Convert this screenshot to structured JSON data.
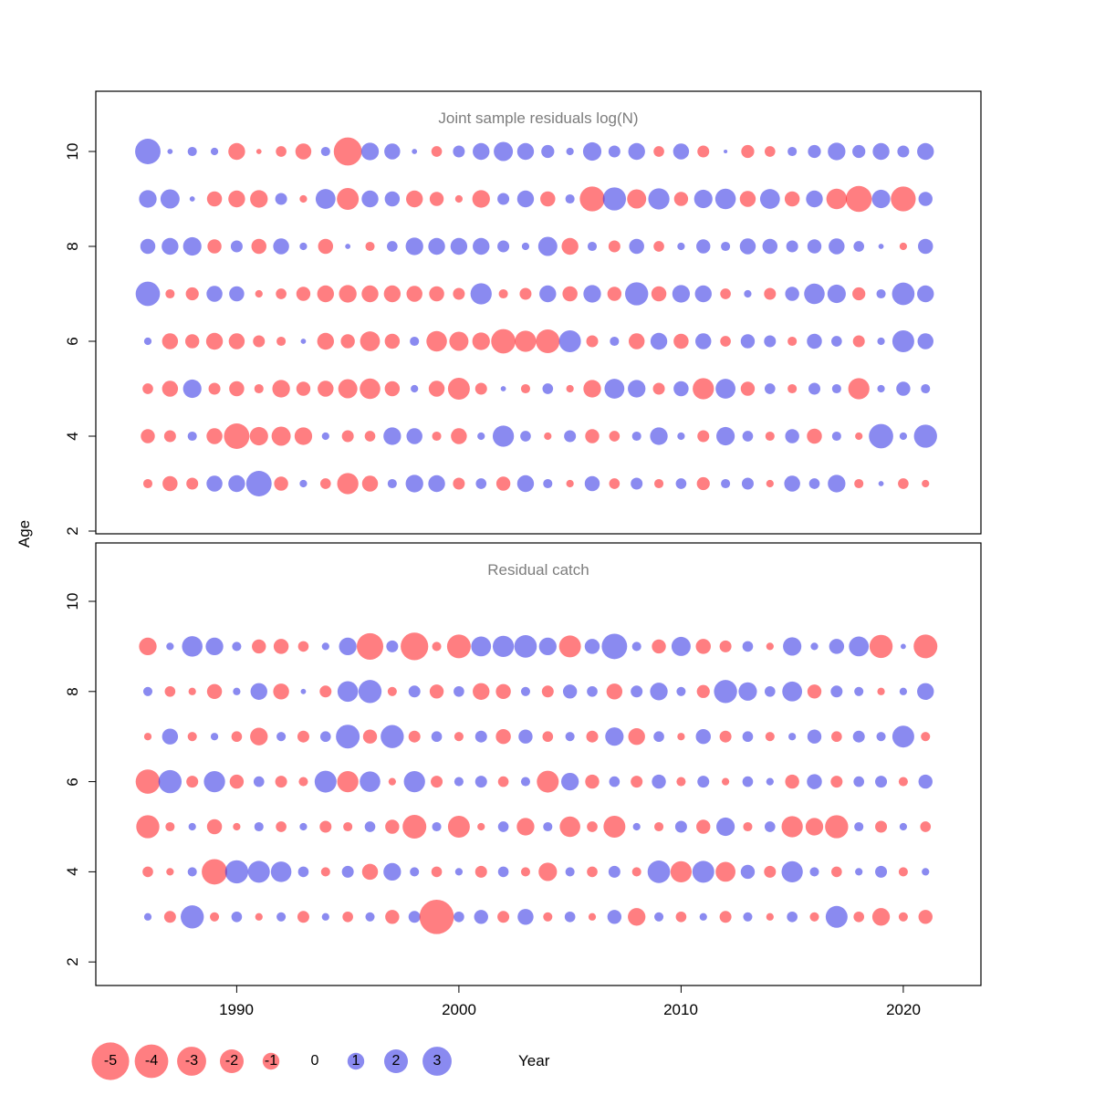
{
  "figure": {
    "xlabel": "Year",
    "ylabel": "Age",
    "colors": {
      "negative": "#ff282d",
      "positive": "#3c3ce6",
      "opacity": 0.6
    }
  },
  "axes": {
    "xticks": [
      "1990",
      "2000",
      "2010",
      "2020"
    ],
    "yticks": [
      "10",
      "8",
      "6",
      "4",
      "2"
    ]
  },
  "legend": {
    "labels": [
      "-5",
      "-4",
      "-3",
      "-2",
      "-1",
      "0",
      "1",
      "2",
      "3"
    ],
    "values": [
      -5,
      -4,
      -3,
      -2,
      -1,
      0,
      1,
      2,
      3
    ]
  },
  "chart_data": [
    {
      "type": "scatter",
      "subtype": "bubble-residuals",
      "title": "Joint sample residuals log(N)",
      "xlabel": "Year",
      "ylabel": "Age",
      "xticks": [
        1990,
        2000,
        2010,
        2020
      ],
      "yticks": [
        10,
        8,
        6,
        4,
        2
      ],
      "years": [
        1986,
        1987,
        1988,
        1989,
        1990,
        1991,
        1992,
        1993,
        1994,
        1995,
        1996,
        1997,
        1998,
        1999,
        2000,
        2001,
        2002,
        2003,
        2004,
        2005,
        2006,
        2007,
        2008,
        2009,
        2010,
        2011,
        2012,
        2013,
        2014,
        2015,
        2016,
        2017,
        2018,
        2019,
        2020,
        2021
      ],
      "ages": [
        10,
        9,
        8,
        7,
        6,
        5,
        4,
        3
      ],
      "values": [
        [
          2.3,
          0.1,
          0.3,
          0.2,
          -1.0,
          -0.1,
          -0.4,
          -0.9,
          0.3,
          -2.8,
          1.1,
          0.9,
          0.1,
          -0.4,
          0.5,
          1.0,
          1.3,
          1.0,
          0.6,
          0.2,
          1.2,
          0.5,
          1.0,
          -0.4,
          0.9,
          -0.5,
          0.05,
          -0.6,
          -0.4,
          0.3,
          0.6,
          1.1,
          0.6,
          1.0,
          0.5,
          1.0
        ],
        [
          1.1,
          1.3,
          0.1,
          -0.8,
          -1.0,
          -1.1,
          0.5,
          -0.2,
          1.4,
          -1.7,
          1.0,
          0.8,
          -1.0,
          -0.7,
          -0.2,
          -1.1,
          0.5,
          1.0,
          -0.8,
          0.3,
          -2.2,
          1.9,
          -1.3,
          1.6,
          -0.7,
          1.2,
          1.5,
          -0.9,
          1.4,
          -0.8,
          1.0,
          -1.5,
          -2.4,
          1.2,
          -2.2,
          0.7
        ],
        [
          0.8,
          1.0,
          1.2,
          -0.7,
          0.5,
          -0.8,
          0.9,
          0.2,
          -0.8,
          0.1,
          -0.3,
          0.4,
          1.1,
          1.0,
          1.0,
          1.0,
          0.5,
          0.2,
          1.3,
          -1.0,
          0.3,
          -0.5,
          0.8,
          -0.4,
          0.2,
          0.7,
          0.3,
          0.9,
          0.8,
          0.5,
          0.7,
          0.9,
          0.4,
          0.1,
          -0.2,
          0.8
        ],
        [
          2.1,
          -0.3,
          -0.6,
          0.9,
          0.8,
          -0.2,
          -0.4,
          -0.7,
          -1.0,
          -1.1,
          -1.0,
          -1.0,
          -0.9,
          -0.8,
          -0.5,
          1.6,
          -0.3,
          -0.5,
          1.0,
          -0.8,
          1.1,
          -0.7,
          1.9,
          -0.8,
          1.1,
          1.0,
          -0.4,
          0.2,
          -0.5,
          0.7,
          1.5,
          1.2,
          -0.6,
          0.3,
          1.8,
          1.0
        ],
        [
          0.2,
          -0.9,
          -0.7,
          -1.0,
          -0.9,
          -0.5,
          -0.3,
          0.1,
          -1.0,
          -0.7,
          -1.4,
          -0.8,
          0.3,
          -1.5,
          -1.3,
          -1.1,
          -2.1,
          -1.6,
          -2.0,
          1.7,
          -0.5,
          0.3,
          -0.9,
          1.0,
          -0.8,
          0.9,
          -0.4,
          0.7,
          0.5,
          -0.3,
          0.8,
          0.4,
          -0.5,
          0.2,
          1.7,
          0.9
        ],
        [
          -0.4,
          -0.9,
          1.2,
          -0.5,
          -0.8,
          -0.3,
          -1.1,
          -0.7,
          -0.9,
          -1.3,
          -1.5,
          -0.8,
          0.2,
          -0.9,
          -1.7,
          -0.5,
          0.1,
          -0.3,
          0.4,
          -0.2,
          -1.1,
          1.4,
          1.1,
          -0.5,
          0.8,
          -1.6,
          1.4,
          -0.7,
          0.4,
          -0.3,
          0.5,
          0.3,
          -1.6,
          0.2,
          0.7,
          0.3
        ],
        [
          -0.7,
          -0.5,
          0.3,
          -0.9,
          -2.3,
          -1.2,
          -1.3,
          -1.1,
          0.2,
          -0.5,
          -0.4,
          1.1,
          0.9,
          -0.3,
          -0.9,
          0.2,
          1.6,
          0.4,
          -0.2,
          0.5,
          -0.7,
          -0.4,
          0.3,
          1.1,
          0.2,
          -0.5,
          1.2,
          0.4,
          -0.3,
          0.7,
          -0.8,
          0.3,
          -0.2,
          2.1,
          0.2,
          1.9
        ],
        [
          -0.3,
          -0.8,
          -0.5,
          0.9,
          1.0,
          2.3,
          -0.7,
          0.2,
          -0.4,
          -1.6,
          -0.9,
          0.3,
          1.1,
          1.0,
          -0.5,
          0.4,
          -0.7,
          1.0,
          0.3,
          -0.2,
          0.8,
          -0.4,
          0.5,
          -0.3,
          0.4,
          -0.6,
          0.3,
          0.5,
          -0.2,
          0.9,
          0.4,
          1.1,
          -0.3,
          0.1,
          -0.4,
          -0.2
        ]
      ]
    },
    {
      "type": "scatter",
      "subtype": "bubble-residuals",
      "title": "Residual catch",
      "xlabel": "Year",
      "ylabel": "Age",
      "xticks": [
        1990,
        2000,
        2010,
        2020
      ],
      "yticks": [
        10,
        8,
        6,
        4,
        2
      ],
      "years": [
        1986,
        1987,
        1988,
        1989,
        1990,
        1991,
        1992,
        1993,
        1994,
        1995,
        1996,
        1997,
        1998,
        1999,
        2000,
        2001,
        2002,
        2003,
        2004,
        2005,
        2006,
        2007,
        2008,
        2009,
        2010,
        2011,
        2012,
        2013,
        2014,
        2015,
        2016,
        2017,
        2018,
        2019,
        2020,
        2021
      ],
      "ages": [
        9,
        8,
        7,
        6,
        5,
        4,
        3
      ],
      "values": [
        [
          -1.1,
          0.2,
          1.5,
          1.1,
          0.3,
          -0.7,
          -0.8,
          -0.4,
          0.2,
          1.1,
          -2.5,
          0.5,
          -2.7,
          -0.3,
          -2.0,
          1.4,
          1.6,
          1.8,
          1.1,
          -1.7,
          0.8,
          2.3,
          0.3,
          -0.7,
          1.3,
          -0.8,
          -0.5,
          0.4,
          -0.2,
          1.2,
          0.2,
          0.8,
          1.4,
          -1.9,
          0.1,
          -2.0
        ],
        [
          0.3,
          -0.4,
          -0.2,
          -0.8,
          0.2,
          1.0,
          -0.9,
          0.1,
          -0.5,
          1.5,
          1.9,
          -0.3,
          0.5,
          -0.7,
          0.4,
          -1.0,
          -0.8,
          0.3,
          -0.5,
          0.7,
          0.4,
          -0.9,
          0.5,
          1.1,
          0.3,
          -0.6,
          1.9,
          1.2,
          0.4,
          1.4,
          -0.7,
          0.5,
          0.3,
          -0.2,
          0.2,
          1.0
        ],
        [
          -0.2,
          0.9,
          -0.3,
          0.2,
          -0.4,
          -1.1,
          0.3,
          -0.5,
          0.4,
          2.0,
          -0.7,
          1.9,
          -0.5,
          0.4,
          -0.3,
          0.5,
          -0.8,
          0.7,
          -0.4,
          0.3,
          -0.5,
          1.2,
          -1.0,
          0.4,
          -0.2,
          0.8,
          -0.5,
          0.4,
          -0.3,
          0.2,
          0.7,
          -0.4,
          0.5,
          0.3,
          1.7,
          -0.3
        ],
        [
          -2.1,
          1.9,
          -0.5,
          1.6,
          -0.7,
          0.4,
          -0.5,
          -0.3,
          1.7,
          -1.6,
          1.5,
          -0.2,
          1.6,
          -0.5,
          0.3,
          0.5,
          -0.4,
          0.3,
          -1.7,
          1.1,
          -0.7,
          0.4,
          -0.5,
          0.7,
          -0.3,
          0.5,
          -0.2,
          0.4,
          0.2,
          -0.7,
          0.8,
          -0.5,
          0.4,
          0.5,
          -0.3,
          0.7
        ],
        [
          -1.9,
          -0.3,
          0.2,
          -0.8,
          -0.2,
          0.3,
          -0.4,
          0.2,
          -0.5,
          -0.3,
          0.4,
          -0.7,
          -2.0,
          0.3,
          -1.7,
          -0.2,
          0.4,
          -1.1,
          0.3,
          -1.5,
          -0.4,
          -1.7,
          0.2,
          -0.3,
          0.5,
          -0.7,
          1.2,
          -0.3,
          0.4,
          -1.6,
          -1.1,
          -1.9,
          0.3,
          -0.5,
          0.2,
          -0.4
        ],
        [
          -0.4,
          -0.2,
          0.3,
          -2.3,
          1.9,
          1.7,
          1.5,
          0.4,
          -0.3,
          0.5,
          -0.9,
          1.1,
          0.3,
          -0.4,
          0.2,
          -0.5,
          0.4,
          -0.3,
          -1.2,
          0.3,
          -0.4,
          0.5,
          -0.3,
          1.8,
          -1.6,
          1.7,
          -1.4,
          0.7,
          -0.5,
          1.6,
          0.3,
          -0.4,
          0.2,
          0.5,
          -0.3,
          0.2
        ],
        [
          0.2,
          -0.5,
          1.9,
          -0.3,
          0.4,
          -0.2,
          0.3,
          -0.5,
          0.2,
          -0.4,
          0.3,
          -0.7,
          0.5,
          -4.2,
          0.4,
          0.7,
          -0.5,
          0.9,
          -0.3,
          0.4,
          -0.2,
          0.7,
          -1.1,
          0.3,
          -0.4,
          0.2,
          -0.5,
          0.3,
          -0.2,
          0.4,
          -0.3,
          1.7,
          -0.4,
          -1.1,
          -0.3,
          -0.7
        ]
      ]
    }
  ]
}
